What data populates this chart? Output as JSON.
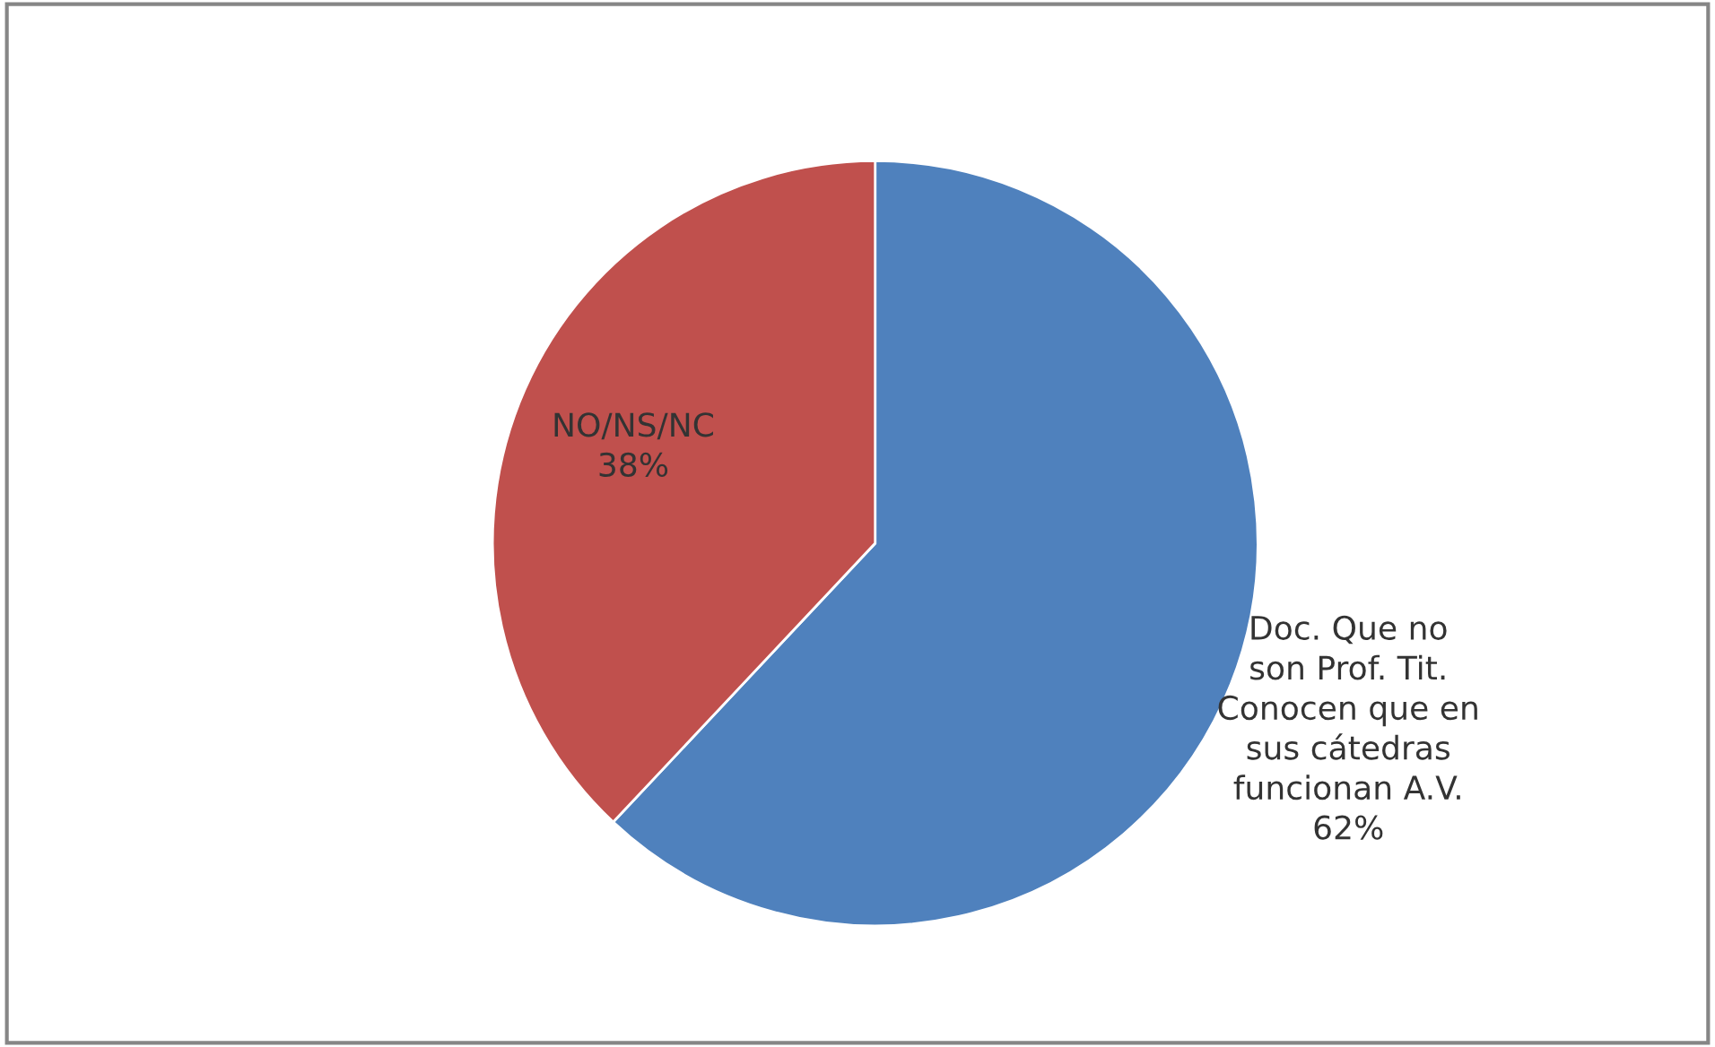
{
  "chart_data": {
    "type": "pie",
    "categories": [
      "Doc. Que no\nson Prof. Tit.\nConocen que en\nsus cátedras\nfuncionan A.V.",
      "NO/NS/NC"
    ],
    "values": [
      62,
      38
    ],
    "value_labels": [
      "62%",
      "38%"
    ],
    "colors": [
      "#4f81bd",
      "#c0504d"
    ],
    "legend": false
  }
}
